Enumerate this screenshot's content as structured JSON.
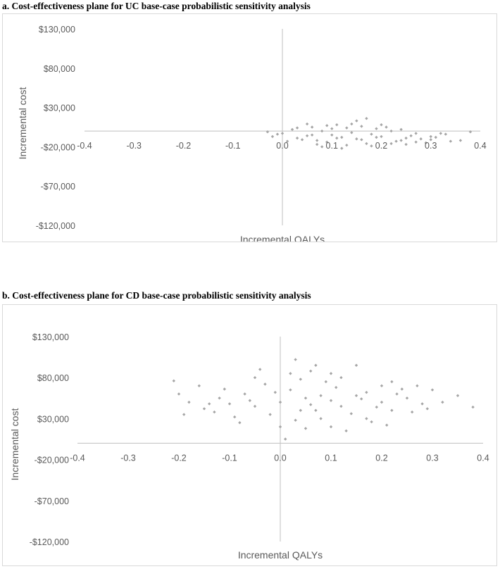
{
  "chart_data": [
    {
      "type": "scatter",
      "title": "a. Cost-effectiveness plane for UC base-case probabilistic sensitivity analysis",
      "xlabel": "Incremental QALYs",
      "ylabel": "Incremental cost",
      "xlim": [
        -0.4,
        0.4
      ],
      "ylim": [
        -120000,
        130000
      ],
      "xticks": [
        -0.4,
        -0.3,
        -0.2,
        -0.1,
        0.0,
        0.1,
        0.2,
        0.3,
        0.4
      ],
      "xtick_labels": [
        "-0.4",
        "-0.3",
        "-0.2",
        "-0.1",
        "0.0",
        "0.1",
        "0.2",
        "0.3",
        "0.4"
      ],
      "yticks": [
        130000,
        80000,
        30000,
        -20000,
        -70000,
        -120000
      ],
      "ytick_labels": [
        "$130,000",
        "$80,000",
        "$30,000",
        "-$20,000",
        "-$70,000",
        "-$120,000"
      ],
      "grid": false,
      "marker_color": "#a6a6a6",
      "axis_color": "#bfbfbf",
      "series": [
        {
          "points": [
            [
              0.0,
              -3000
            ],
            [
              0.05,
              -6000
            ],
            [
              0.08,
              0
            ],
            [
              0.1,
              -5000
            ],
            [
              0.12,
              -8000
            ],
            [
              0.14,
              -2000
            ],
            [
              0.15,
              -10000
            ],
            [
              0.18,
              -4000
            ],
            [
              0.2,
              -7000
            ],
            [
              0.22,
              0
            ],
            [
              0.03,
              -9000
            ],
            [
              0.06,
              5000
            ],
            [
              0.11,
              8000
            ],
            [
              0.16,
              6000
            ],
            [
              0.24,
              -12000
            ],
            [
              0.27,
              -3000
            ],
            [
              -0.01,
              -4000
            ],
            [
              -0.03,
              -1000
            ],
            [
              0.02,
              2000
            ],
            [
              0.09,
              -14000
            ],
            [
              0.13,
              -18000
            ],
            [
              0.19,
              3000
            ],
            [
              0.25,
              -9000
            ],
            [
              0.3,
              -7000
            ],
            [
              0.32,
              -3000
            ],
            [
              0.38,
              -1000
            ],
            [
              0.36,
              -12000
            ],
            [
              0.29,
              -15000
            ],
            [
              0.33,
              -4000
            ],
            [
              0.07,
              -17000
            ],
            [
              0.17,
              -16000
            ],
            [
              0.23,
              -13000
            ],
            [
              0.21,
              5000
            ],
            [
              0.04,
              -11000
            ],
            [
              0.15,
              13000
            ],
            [
              0.12,
              -22000
            ],
            [
              0.1,
              3000
            ],
            [
              0.26,
              -6000
            ],
            [
              0.28,
              -10000
            ],
            [
              0.31,
              -8000
            ],
            [
              -0.02,
              -7000
            ],
            [
              0.01,
              -13000
            ],
            [
              0.08,
              -20000
            ],
            [
              0.14,
              9000
            ],
            [
              0.18,
              -19000
            ],
            [
              0.2,
              8000
            ],
            [
              0.06,
              -5000
            ],
            [
              0.22,
              -16000
            ],
            [
              0.16,
              -11000
            ],
            [
              0.11,
              -9000
            ],
            [
              0.09,
              7000
            ],
            [
              0.13,
              4000
            ],
            [
              0.24,
              2000
            ],
            [
              0.19,
              -8000
            ],
            [
              0.05,
              9000
            ],
            [
              0.27,
              -14000
            ],
            [
              0.07,
              -12000
            ],
            [
              0.03,
              4000
            ],
            [
              0.17,
              16000
            ],
            [
              0.25,
              -17000
            ],
            [
              0.3,
              -11000
            ],
            [
              0.34,
              -13000
            ]
          ]
        }
      ]
    },
    {
      "type": "scatter",
      "title": "b. Cost-effectiveness plane for CD base-case probabilistic sensitivity analysis",
      "xlabel": "Incremental QALYs",
      "ylabel": "Incremental cost",
      "xlim": [
        -0.4,
        0.4
      ],
      "ylim": [
        -120000,
        130000
      ],
      "xticks": [
        -0.4,
        -0.3,
        -0.2,
        -0.1,
        0.0,
        0.1,
        0.2,
        0.3,
        0.4
      ],
      "xtick_labels": [
        "-0.4",
        "-0.3",
        "-0.2",
        "-0.1",
        "0.0",
        "0.1",
        "0.2",
        "0.3",
        "0.4"
      ],
      "yticks": [
        130000,
        80000,
        30000,
        -20000,
        -70000,
        -120000
      ],
      "ytick_labels": [
        "$130,000",
        "$80,000",
        "$30,000",
        "-$20,000",
        "-$70,000",
        "-$120,000"
      ],
      "grid": false,
      "marker_color": "#a6a6a6",
      "axis_color": "#bfbfbf",
      "series": [
        {
          "points": [
            [
              0.0,
              50000
            ],
            [
              0.05,
              55000
            ],
            [
              -0.05,
              45000
            ],
            [
              0.1,
              52000
            ],
            [
              -0.1,
              48000
            ],
            [
              0.15,
              58000
            ],
            [
              -0.15,
              42000
            ],
            [
              0.2,
              50000
            ],
            [
              0.02,
              65000
            ],
            [
              -0.02,
              35000
            ],
            [
              0.07,
              40000
            ],
            [
              -0.07,
              60000
            ],
            [
              0.12,
              45000
            ],
            [
              0.17,
              62000
            ],
            [
              -0.12,
              55000
            ],
            [
              0.22,
              40000
            ],
            [
              0.25,
              55000
            ],
            [
              -0.18,
              50000
            ],
            [
              -0.2,
              60000
            ],
            [
              0.28,
              48000
            ],
            [
              0.3,
              65000
            ],
            [
              0.35,
              58000
            ],
            [
              0.38,
              44000
            ],
            [
              -0.21,
              76000
            ],
            [
              0.03,
              28000
            ],
            [
              0.08,
              30000
            ],
            [
              -0.03,
              72000
            ],
            [
              0.04,
              78000
            ],
            [
              0.1,
              85000
            ],
            [
              0.03,
              102000
            ],
            [
              0.06,
              88000
            ],
            [
              -0.04,
              90000
            ],
            [
              0.15,
              95000
            ],
            [
              0.0,
              20000
            ],
            [
              0.05,
              18000
            ],
            [
              -0.08,
              25000
            ],
            [
              0.18,
              26000
            ],
            [
              0.13,
              15000
            ],
            [
              0.01,
              5000
            ],
            [
              0.2,
              70000
            ],
            [
              -0.16,
              70000
            ],
            [
              0.24,
              66000
            ],
            [
              0.26,
              38000
            ],
            [
              0.21,
              22000
            ],
            [
              0.11,
              68000
            ],
            [
              -0.09,
              32000
            ],
            [
              0.09,
              75000
            ],
            [
              -0.11,
              66000
            ],
            [
              0.14,
              36000
            ],
            [
              0.19,
              44000
            ],
            [
              -0.06,
              52000
            ],
            [
              0.06,
              47000
            ],
            [
              0.16,
              54000
            ],
            [
              -0.13,
              38000
            ],
            [
              0.23,
              60000
            ],
            [
              0.27,
              70000
            ],
            [
              0.32,
              50000
            ],
            [
              -0.19,
              35000
            ],
            [
              0.08,
              58000
            ],
            [
              -0.01,
              62000
            ],
            [
              0.04,
              40000
            ],
            [
              0.12,
              80000
            ],
            [
              -0.14,
              48000
            ],
            [
              0.17,
              30000
            ],
            [
              0.22,
              75000
            ],
            [
              0.29,
              42000
            ],
            [
              0.02,
              85000
            ],
            [
              -0.05,
              80000
            ],
            [
              0.07,
              95000
            ],
            [
              0.1,
              20000
            ]
          ]
        }
      ]
    }
  ]
}
